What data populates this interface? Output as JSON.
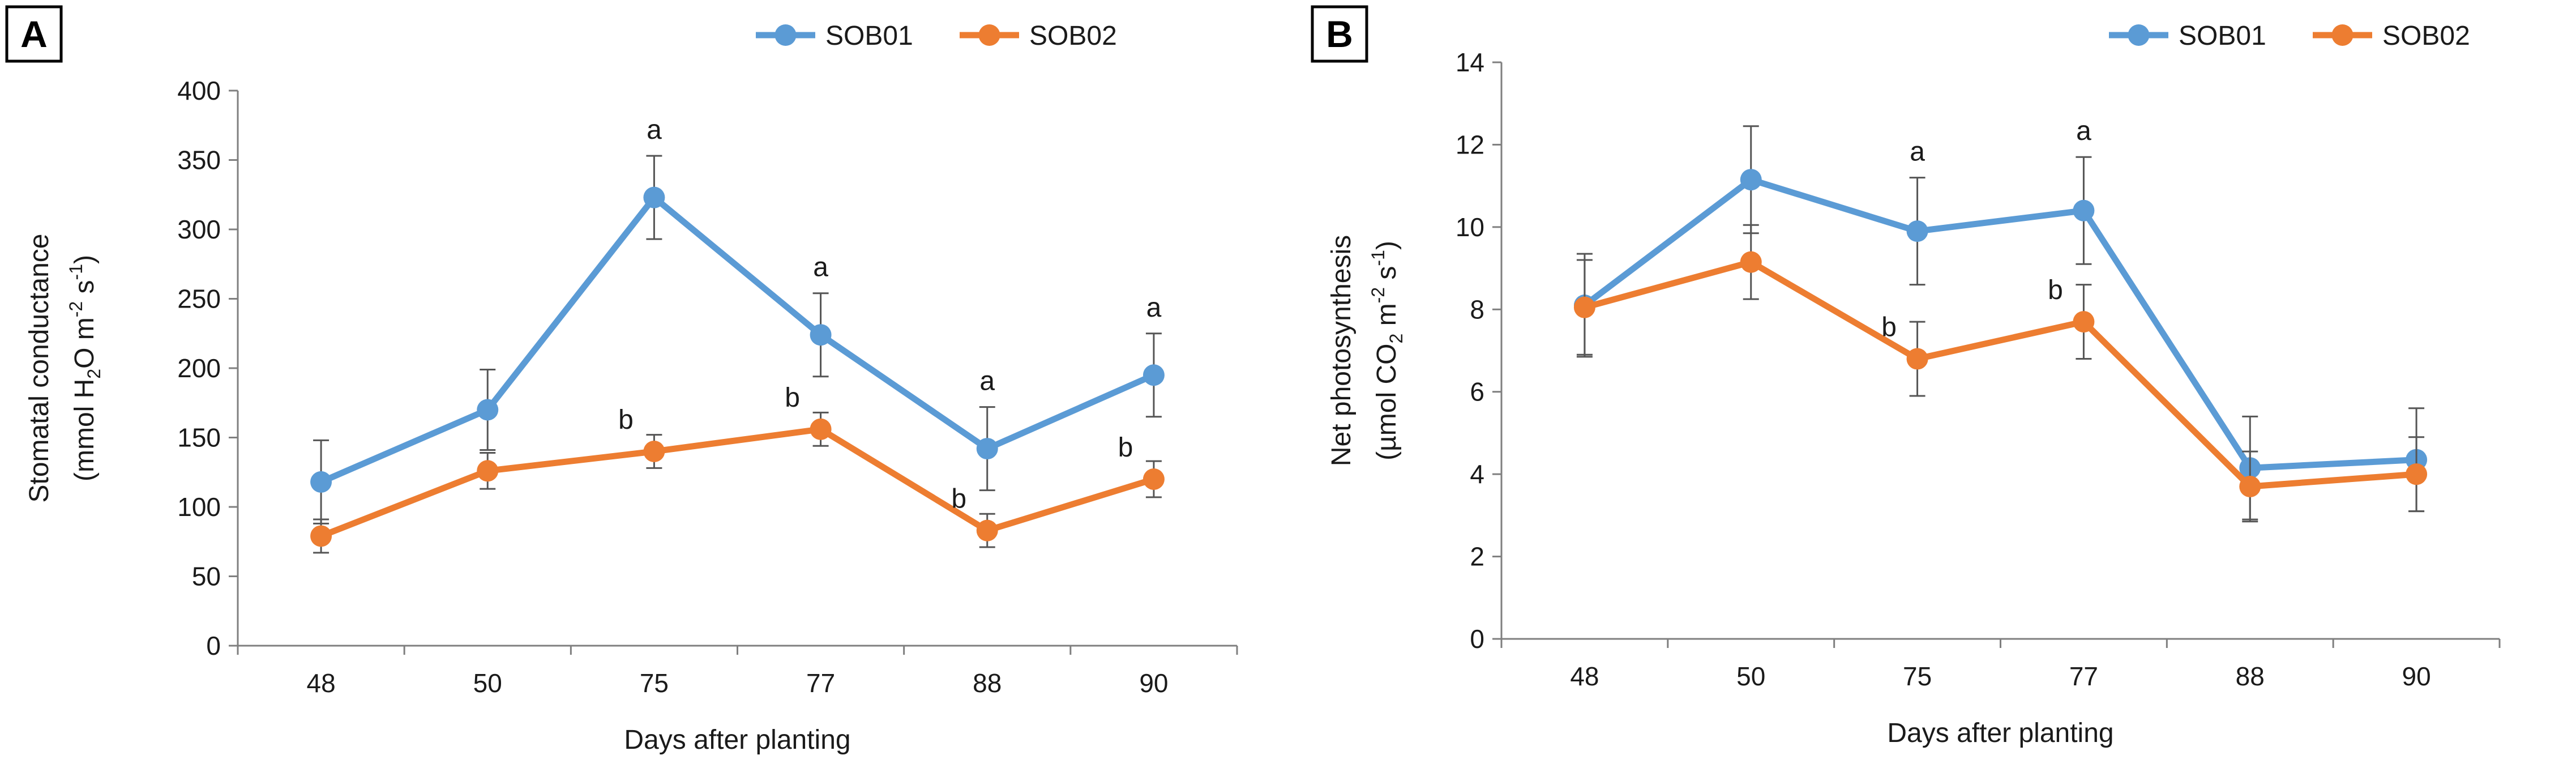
{
  "figure": {
    "panels": [
      {
        "letter": "A"
      },
      {
        "letter": "B"
      }
    ]
  },
  "chart_data": [
    {
      "type": "line",
      "panel": "A",
      "title": "",
      "xlabel": "Days after planting",
      "ylabel_line1": "Stomatal conductance",
      "ylabel_line2_parts": [
        "(mmol H",
        "2",
        "O m",
        "-2",
        " s",
        "-1",
        ")"
      ],
      "categories": [
        "48",
        "50",
        "75",
        "77",
        "88",
        "90"
      ],
      "ylim": [
        0,
        400
      ],
      "yticks": [
        0,
        50,
        100,
        150,
        200,
        250,
        300,
        350,
        400
      ],
      "legend_position": "top-right",
      "series": [
        {
          "name": "SOB01",
          "color": "#5B9BD5",
          "values": [
            118,
            170,
            323,
            224,
            142,
            195
          ],
          "errors": [
            30,
            29,
            30,
            30,
            30,
            30
          ]
        },
        {
          "name": "SOB02",
          "color": "#ED7D31",
          "values": [
            79,
            126,
            140,
            156,
            83,
            120
          ],
          "errors": [
            12,
            13,
            12,
            12,
            12,
            13
          ]
        }
      ],
      "annotations": [
        {
          "category": "75",
          "series": "SOB01",
          "text": "a"
        },
        {
          "category": "77",
          "series": "SOB01",
          "text": "a"
        },
        {
          "category": "88",
          "series": "SOB01",
          "text": "a"
        },
        {
          "category": "90",
          "series": "SOB01",
          "text": "a"
        },
        {
          "category": "75",
          "series": "SOB02",
          "text": "b"
        },
        {
          "category": "77",
          "series": "SOB02",
          "text": "b"
        },
        {
          "category": "88",
          "series": "SOB02",
          "text": "b"
        },
        {
          "category": "90",
          "series": "SOB02",
          "text": "b"
        }
      ]
    },
    {
      "type": "line",
      "panel": "B",
      "title": "",
      "xlabel": "Days after planting",
      "ylabel_line1": "Net photosynthesis",
      "ylabel_line2_parts": [
        "(µmol CO",
        "2",
        " m",
        "-2",
        " s",
        "-1",
        ")"
      ],
      "categories": [
        "48",
        "50",
        "75",
        "77",
        "88",
        "90"
      ],
      "ylim": [
        0,
        14
      ],
      "yticks": [
        0,
        2,
        4,
        6,
        8,
        10,
        12,
        14
      ],
      "legend_position": "top-right",
      "series": [
        {
          "name": "SOB01",
          "color": "#5B9BD5",
          "values": [
            8.1,
            11.15,
            9.9,
            10.4,
            4.15,
            4.35
          ],
          "errors": [
            1.25,
            1.3,
            1.3,
            1.3,
            1.25,
            1.25
          ]
        },
        {
          "name": "SOB02",
          "color": "#ED7D31",
          "values": [
            8.05,
            9.15,
            6.8,
            7.7,
            3.7,
            4.0
          ],
          "errors": [
            1.15,
            0.9,
            0.9,
            0.9,
            0.85,
            0.9
          ]
        }
      ],
      "annotations": [
        {
          "category": "75",
          "series": "SOB01",
          "text": "a"
        },
        {
          "category": "77",
          "series": "SOB01",
          "text": "a"
        },
        {
          "category": "75",
          "series": "SOB02",
          "text": "b"
        },
        {
          "category": "77",
          "series": "SOB02",
          "text": "b"
        }
      ]
    }
  ]
}
